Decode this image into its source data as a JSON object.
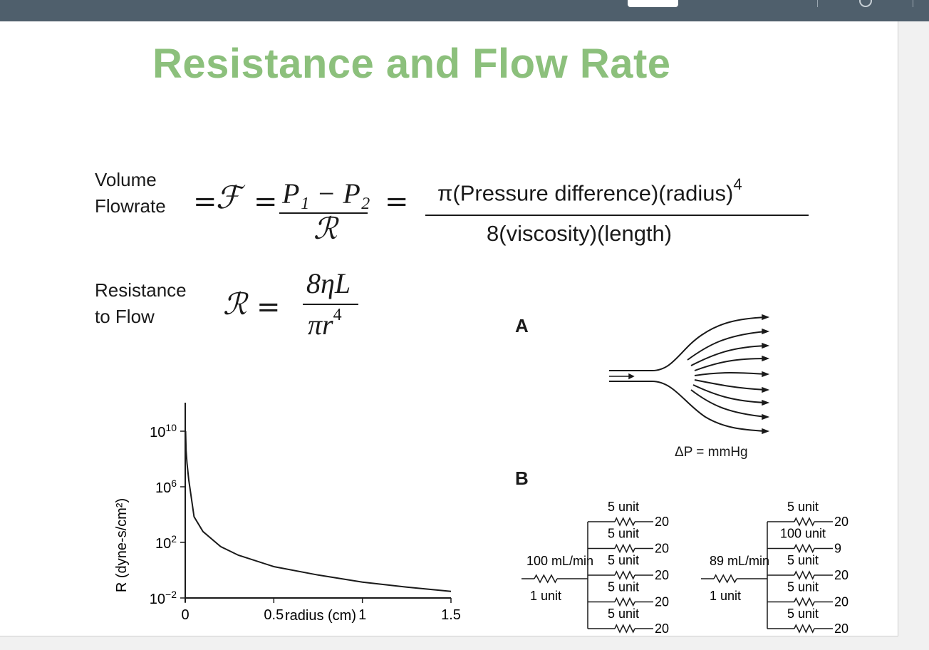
{
  "title": "Resistance and Flow Rate",
  "formula1": {
    "label_line1": "Volume",
    "label_line2": "Flowrate",
    "eq1": "=",
    "symbol_f": "ℱ",
    "eq2": "=",
    "numerator": "P₁ − P₂",
    "denominator": "ℛ",
    "eq3": "=",
    "rhs_numerator": "π(Pressure difference)(radius)",
    "rhs_exponent": "4",
    "rhs_denominator": "8(viscosity)(length)"
  },
  "formula2": {
    "label_line1": "Resistance",
    "label_line2": "to Flow",
    "symbol_r": "ℛ",
    "eq": "=",
    "numerator": "8ηL",
    "denominator": "πr",
    "exponent": "4"
  },
  "chart_data": {
    "type": "line",
    "title": "",
    "xlabel": "radius (cm)",
    "ylabel": "R (dyne-s/cm²)",
    "y_scale": "log",
    "xlim": [
      0,
      1.5
    ],
    "ylim": [
      0.01,
      10000000000.0
    ],
    "x_ticks": [
      "0",
      "0.5",
      "1",
      "1.5"
    ],
    "y_ticks": [
      {
        "base": "10",
        "exp": "10"
      },
      {
        "base": "10",
        "exp": "6"
      },
      {
        "base": "10",
        "exp": "2"
      },
      {
        "base": "10",
        "exp": "−2"
      }
    ],
    "series": [
      {
        "x": [
          0.002,
          0.005,
          0.01,
          0.02,
          0.05,
          0.1,
          0.2,
          0.3,
          0.5,
          0.75,
          1.0,
          1.25,
          1.5
        ],
        "y": [
          10000000000.0,
          400000000.0,
          50000000.0,
          3000000.0,
          7000,
          600,
          50,
          12,
          1.8,
          0.45,
          0.14,
          0.06,
          0.03
        ]
      }
    ],
    "grid": false,
    "color": "#1a1a1a"
  },
  "panel_a": {
    "label": "A",
    "pressure_label": "ΔP = mmHg"
  },
  "panel_b": {
    "label": "B",
    "left": {
      "input_flow": "100 mL/min",
      "input_resistance": "1 unit",
      "branches": [
        {
          "resistance": "5 unit",
          "flow": "20"
        },
        {
          "resistance": "5 unit",
          "flow": "20"
        },
        {
          "resistance": "5 unit",
          "flow": "20"
        },
        {
          "resistance": "5 unit",
          "flow": "20"
        },
        {
          "resistance": "5 unit",
          "flow": "20"
        }
      ]
    },
    "right": {
      "input_flow": "89 mL/min",
      "input_resistance": "1 unit",
      "branches": [
        {
          "resistance": "5 unit",
          "flow": "20"
        },
        {
          "resistance": "100 unit",
          "flow": "9"
        },
        {
          "resistance": "5 unit",
          "flow": "20"
        },
        {
          "resistance": "5 unit",
          "flow": "20"
        },
        {
          "resistance": "5 unit",
          "flow": "20"
        }
      ]
    }
  }
}
